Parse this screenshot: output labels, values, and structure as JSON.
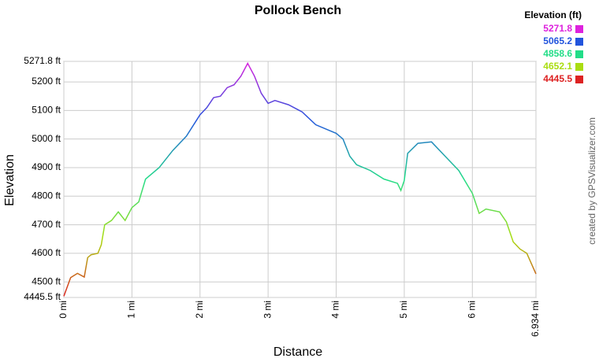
{
  "chart_data": {
    "type": "line",
    "title": "Pollock Bench",
    "x_label": "Distance",
    "y_label": "Elevation",
    "credit": "created by GPSVisualizer.com",
    "x": [
      0,
      0.1,
      0.2,
      0.3,
      0.35,
      0.4,
      0.5,
      0.55,
      0.6,
      0.7,
      0.8,
      0.9,
      1.0,
      1.1,
      1.2,
      1.4,
      1.6,
      1.8,
      2.0,
      2.1,
      2.2,
      2.3,
      2.4,
      2.5,
      2.6,
      2.7,
      2.8,
      2.9,
      3.0,
      3.1,
      3.3,
      3.5,
      3.7,
      3.9,
      4.0,
      4.1,
      4.2,
      4.3,
      4.5,
      4.7,
      4.9,
      4.95,
      5.0,
      5.05,
      5.2,
      5.4,
      5.6,
      5.8,
      6.0,
      6.1,
      6.2,
      6.4,
      6.5,
      6.6,
      6.7,
      6.8,
      6.934
    ],
    "series": [
      {
        "name": "Elevation (ft)",
        "values": [
          4450,
          4515,
          4530,
          4517,
          4585,
          4595,
          4600,
          4630,
          4700,
          4715,
          4745,
          4715,
          4760,
          4780,
          4860,
          4900,
          4960,
          5010,
          5085,
          5110,
          5145,
          5150,
          5180,
          5190,
          5220,
          5265,
          5220,
          5160,
          5125,
          5135,
          5120,
          5095,
          5050,
          5030,
          5020,
          5000,
          4940,
          4910,
          4890,
          4860,
          4845,
          4820,
          4855,
          4950,
          4985,
          4990,
          4940,
          4890,
          4810,
          4740,
          4755,
          4745,
          4710,
          4640,
          4615,
          4600,
          4528
        ]
      }
    ],
    "color_scale": [
      {
        "value": 5271.8,
        "color": "#dd22dd"
      },
      {
        "value": 5065.2,
        "color": "#2255dd"
      },
      {
        "value": 4858.6,
        "color": "#22dd88"
      },
      {
        "value": 4652.1,
        "color": "#aadd11"
      },
      {
        "value": 4445.5,
        "color": "#dd2222"
      }
    ],
    "xlim": [
      0,
      6.934
    ],
    "ylim": [
      4445.5,
      5271.8
    ],
    "xticks": [
      {
        "value": 0,
        "label": "0 mi"
      },
      {
        "value": 1,
        "label": "1 mi"
      },
      {
        "value": 2,
        "label": "2 mi"
      },
      {
        "value": 3,
        "label": "3 mi"
      },
      {
        "value": 4,
        "label": "4 mi"
      },
      {
        "value": 5,
        "label": "5 mi"
      },
      {
        "value": 6,
        "label": "6 mi"
      },
      {
        "value": 6.934,
        "label": "6.934 mi"
      }
    ],
    "yticks": [
      {
        "value": 4445.5,
        "label": "4445.5 ft"
      },
      {
        "value": 4500,
        "label": "4500 ft"
      },
      {
        "value": 4600,
        "label": "4600 ft"
      },
      {
        "value": 4700,
        "label": "4700 ft"
      },
      {
        "value": 4800,
        "label": "4800 ft"
      },
      {
        "value": 4900,
        "label": "4900 ft"
      },
      {
        "value": 5000,
        "label": "5000 ft"
      },
      {
        "value": 5100,
        "label": "5100 ft"
      },
      {
        "value": 5200,
        "label": "5200 ft"
      },
      {
        "value": 5271.8,
        "label": "5271.8 ft"
      }
    ],
    "grid": true
  }
}
